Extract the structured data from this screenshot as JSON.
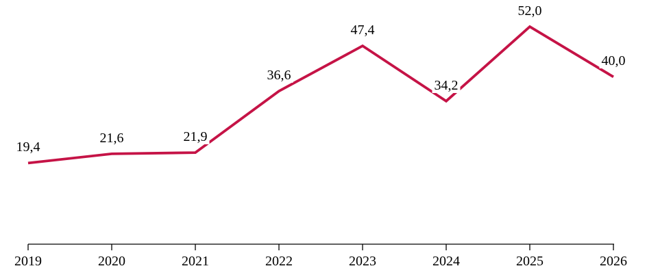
{
  "chart_data": {
    "type": "line",
    "categories": [
      "2019",
      "2020",
      "2021",
      "2022",
      "2023",
      "2024",
      "2025",
      "2026"
    ],
    "values": [
      19.4,
      21.6,
      21.9,
      36.6,
      47.4,
      34.2,
      52.0,
      40.0
    ],
    "point_labels": [
      "19,4",
      "21,6",
      "21,9",
      "36,6",
      "47,4",
      "34,2",
      "52,0",
      "40,0"
    ],
    "title": "",
    "xlabel": "",
    "ylabel": "",
    "ylim": [
      0,
      58
    ],
    "grid": false,
    "legend": "none",
    "decimal_separator": ",",
    "line_color": "#C51346",
    "axis_color": "#000000",
    "text_color": "#000000",
    "background_color": "#FFFFFF"
  }
}
